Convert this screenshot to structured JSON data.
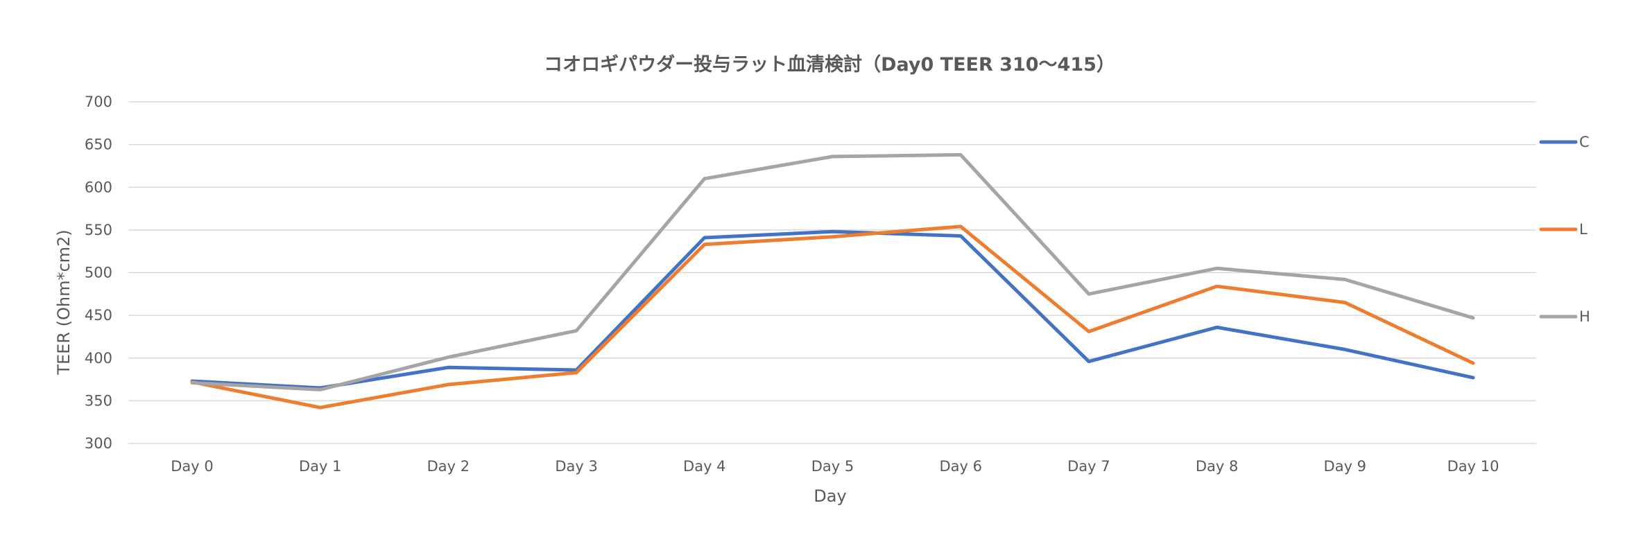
{
  "chart_data": {
    "type": "line",
    "title": "コオロギパウダー投与ラット血清検討（Day0 TEER 310～415）",
    "xlabel": "Day",
    "ylabel": "TEER (Ohm*cm2)",
    "categories": [
      "Day 0",
      "Day 1",
      "Day 2",
      "Day 3",
      "Day 4",
      "Day 5",
      "Day 6",
      "Day 7",
      "Day 8",
      "Day 9",
      "Day 10"
    ],
    "ylim": [
      300,
      700
    ],
    "yticks": [
      "300",
      "350",
      "400",
      "450",
      "500",
      "550",
      "600",
      "650",
      "700"
    ],
    "grid": true,
    "legend_position": "right",
    "series": [
      {
        "name": "C",
        "color": "#4472c4",
        "values": [
          373,
          365,
          389,
          386,
          541,
          548,
          543,
          396,
          436,
          410,
          377
        ]
      },
      {
        "name": "L",
        "color": "#ed7d31",
        "values": [
          372,
          342,
          369,
          383,
          533,
          542,
          554,
          431,
          484,
          465,
          394
        ]
      },
      {
        "name": "H",
        "color": "#a5a5a5",
        "values": [
          371,
          363,
          401,
          432,
          610,
          636,
          638,
          475,
          505,
          492,
          447
        ]
      }
    ]
  }
}
